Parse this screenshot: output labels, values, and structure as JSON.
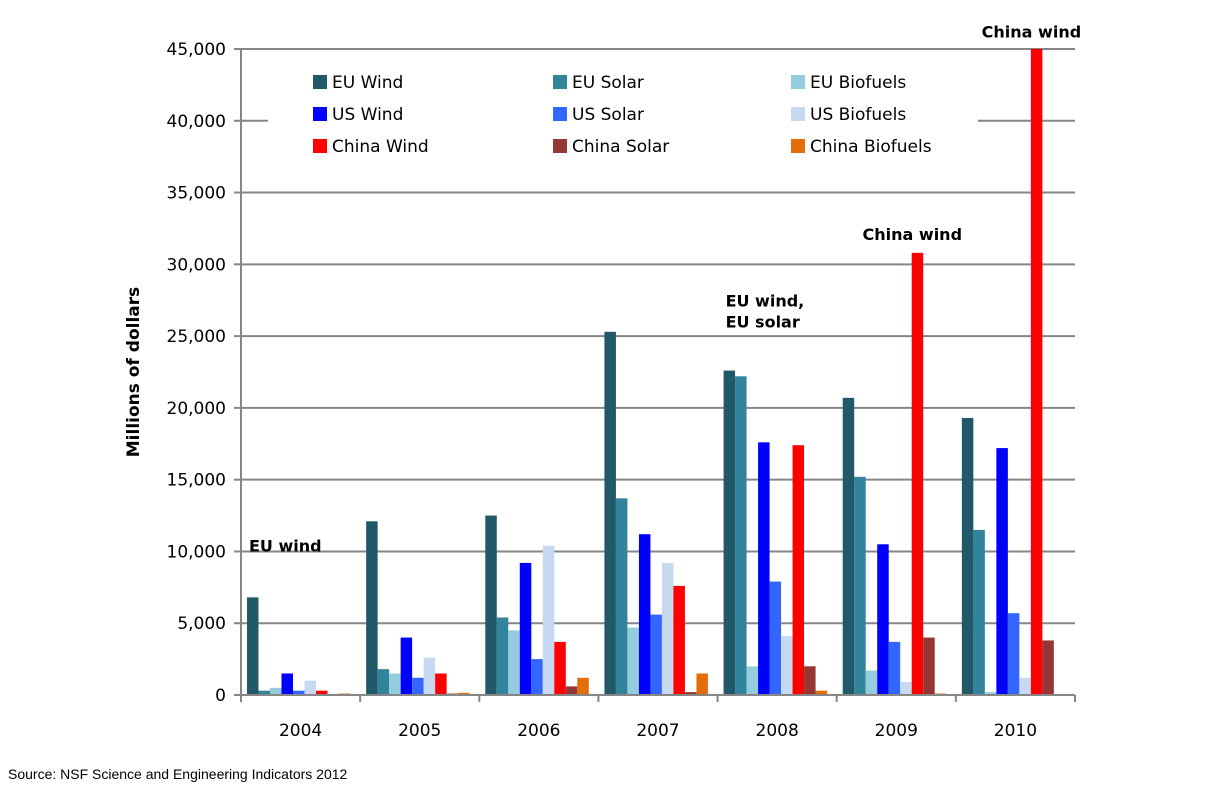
{
  "chart_data": {
    "type": "bar",
    "ylabel": "Millions of dollars",
    "ylim": [
      0,
      45000
    ],
    "yticks": [
      "0",
      "5,000",
      "10,000",
      "15,000",
      "20,000",
      "25,000",
      "30,000",
      "35,000",
      "40,000",
      "45,000"
    ],
    "ytick_values": [
      0,
      5000,
      10000,
      15000,
      20000,
      25000,
      30000,
      35000,
      40000,
      45000
    ],
    "grid": true,
    "legend_placement": "top",
    "categories": [
      "2004",
      "2005",
      "2006",
      "2007",
      "2008",
      "2009",
      "2010"
    ],
    "series": [
      {
        "name": "EU Wind",
        "color": "#215968",
        "values": [
          6800,
          12100,
          12500,
          25300,
          22600,
          20700,
          19300
        ]
      },
      {
        "name": "EU Solar",
        "color": "#31849b",
        "values": [
          300,
          1800,
          5400,
          13700,
          22200,
          15200,
          11500
        ]
      },
      {
        "name": "EU Biofuels",
        "color": "#93cddd",
        "values": [
          500,
          1500,
          4500,
          4700,
          2000,
          1700,
          200
        ]
      },
      {
        "name": "US Wind",
        "color": "#0000ff",
        "values": [
          1500,
          4000,
          9200,
          11200,
          17600,
          10500,
          17200
        ]
      },
      {
        "name": "US Solar",
        "color": "#3366ff",
        "values": [
          300,
          1200,
          2500,
          5600,
          7900,
          3700,
          5700
        ]
      },
      {
        "name": "US Biofuels",
        "color": "#c6d9f1",
        "values": [
          1000,
          2600,
          10400,
          9200,
          4100,
          900,
          1200
        ]
      },
      {
        "name": "China Wind",
        "color": "#ff0000",
        "values": [
          300,
          1500,
          3700,
          7600,
          17400,
          30800,
          45000
        ]
      },
      {
        "name": "China Solar",
        "color": "#953735",
        "values": [
          50,
          100,
          600,
          200,
          2000,
          4000,
          3800
        ]
      },
      {
        "name": "China Biofuels",
        "color": "#e46c0a",
        "values": [
          100,
          150,
          1200,
          1500,
          300,
          100,
          0
        ]
      }
    ],
    "annotations": [
      {
        "lines": [
          "EU wind"
        ],
        "category": "2004",
        "value": 10000
      },
      {
        "lines": [
          "EU wind,",
          "EU solar"
        ],
        "category": "2008",
        "value": 25600
      },
      {
        "lines": [
          "China wind"
        ],
        "category": "2009",
        "value": 31700
      },
      {
        "lines": [
          "China wind"
        ],
        "category": "2010",
        "value": 45800
      }
    ]
  },
  "source": "Source: NSF Science and Engineering Indicators 2012"
}
